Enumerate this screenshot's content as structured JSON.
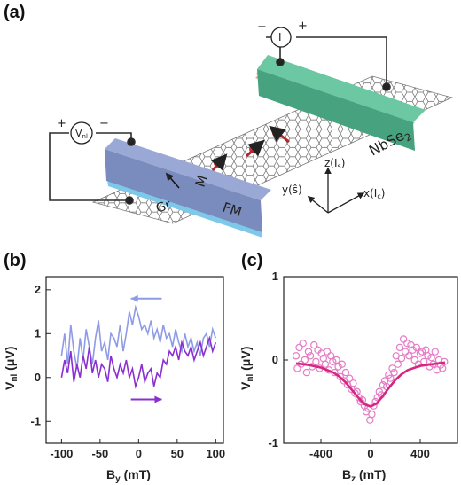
{
  "panels": {
    "a": "(a)",
    "b": "(b)",
    "c": "(c)"
  },
  "schematic": {
    "voltmeter": "V",
    "voltmeter_sub": "nl",
    "voltmeter_plus": "+",
    "voltmeter_minus": "−",
    "ammeter": "I",
    "ammeter_plus": "+",
    "ammeter_minus": "−",
    "graphene_label": "Gr",
    "ferromagnet_label": "FM",
    "magnetization_label": "M",
    "tmd_label": "NbSe",
    "tmd_sub": "2",
    "axis_z": "z(I",
    "axis_z_sub": "s",
    "axis_y": "y(ŝ)",
    "axis_x": "x(I",
    "axis_x_sub": "c",
    "colors": {
      "ferromagnet": "#8a9ccc",
      "ferromagnet_base": "#6fc6e8",
      "tmd": "#5fbf99",
      "spin": "#b5262a",
      "graphene": "#555555"
    }
  },
  "chart_data": [
    {
      "type": "line",
      "panel": "(b)",
      "xlabel": "B",
      "xlabel_sub": "y",
      "xlabel_unit": " (mT)",
      "ylabel": "V",
      "ylabel_sub": "nl",
      "ylabel_unit": " (μV)",
      "xlim": [
        -120,
        110
      ],
      "ylim": [
        -1.5,
        2.3
      ],
      "xticks": [
        -100,
        -50,
        0,
        50,
        100
      ],
      "yticks": [
        -1,
        0,
        1,
        2
      ],
      "series": [
        {
          "color": "#8e9be6",
          "sweep": "down",
          "x": [
            -100,
            -96,
            -92,
            -88,
            -84,
            -80,
            -76,
            -72,
            -68,
            -64,
            -60,
            -56,
            -52,
            -48,
            -44,
            -40,
            -36,
            -32,
            -28,
            -24,
            -20,
            -16,
            -12,
            -8,
            -4,
            0,
            4,
            8,
            12,
            16,
            20,
            24,
            28,
            32,
            36,
            40,
            44,
            48,
            52,
            56,
            60,
            64,
            68,
            72,
            76,
            80,
            84,
            88,
            92,
            96,
            100
          ],
          "y": [
            0.5,
            1.0,
            0.3,
            1.2,
            0.6,
            0.2,
            0.9,
            0.4,
            1.1,
            0.7,
            0.3,
            0.9,
            1.3,
            0.6,
            0.8,
            0.4,
            1.0,
            0.9,
            0.7,
            1.2,
            0.6,
            1.0,
            1.5,
            1.2,
            1.6,
            1.4,
            1.1,
            1.2,
            1.0,
            1.3,
            0.9,
            1.1,
            0.8,
            1.2,
            0.9,
            1.0,
            0.7,
            1.1,
            0.8,
            0.6,
            1.0,
            0.7,
            0.9,
            0.6,
            0.8,
            0.5,
            0.9,
            1.0,
            0.7,
            1.1,
            0.9
          ]
        },
        {
          "color": "#8b2fd1",
          "sweep": "up",
          "x": [
            -100,
            -96,
            -92,
            -88,
            -84,
            -80,
            -76,
            -72,
            -68,
            -64,
            -60,
            -56,
            -52,
            -48,
            -44,
            -40,
            -36,
            -32,
            -28,
            -24,
            -20,
            -16,
            -12,
            -8,
            -4,
            0,
            4,
            8,
            12,
            16,
            20,
            24,
            28,
            32,
            36,
            40,
            44,
            48,
            52,
            56,
            60,
            64,
            68,
            72,
            76,
            80,
            84,
            88,
            92,
            96,
            100
          ],
          "y": [
            0.0,
            0.4,
            0.1,
            0.6,
            -0.1,
            0.3,
            0.0,
            0.5,
            0.2,
            0.7,
            0.1,
            0.4,
            0.0,
            0.3,
            0.2,
            -0.1,
            0.5,
            0.2,
            0.0,
            0.3,
            0.1,
            0.4,
            0.0,
            0.2,
            -0.2,
            0.0,
            0.3,
            -0.1,
            0.1,
            0.2,
            -0.2,
            0.1,
            0.0,
            0.4,
            0.3,
            0.6,
            0.5,
            0.7,
            0.4,
            0.8,
            0.6,
            0.5,
            0.7,
            0.4,
            0.6,
            0.8,
            0.5,
            0.7,
            0.9,
            0.6,
            0.8
          ]
        }
      ],
      "annotations": {
        "arrow_down_sweep": {
          "x_from": 30,
          "x_to": -10,
          "y": 1.8,
          "color": "#8e9be6"
        },
        "arrow_up_sweep": {
          "x_from": -10,
          "x_to": 30,
          "y": -0.5,
          "color": "#8b2fd1"
        }
      }
    },
    {
      "type": "scatter",
      "panel": "(c)",
      "xlabel": "B",
      "xlabel_sub": "z",
      "xlabel_unit": " (mT)",
      "ylabel": "V",
      "ylabel_sub": "nl",
      "ylabel_unit": " (μV)",
      "xlim": [
        -700,
        700
      ],
      "ylim": [
        -1.0,
        1.0
      ],
      "xticks": [
        -400,
        0,
        400
      ],
      "yticks": [
        -1,
        0,
        1
      ],
      "marker_color": "#e57bc5",
      "fit_color": "#d6267f",
      "points": {
        "x": [
          -600,
          -590,
          -575,
          -560,
          -545,
          -530,
          -515,
          -500,
          -485,
          -470,
          -455,
          -440,
          -425,
          -410,
          -395,
          -380,
          -365,
          -350,
          -335,
          -320,
          -305,
          -290,
          -275,
          -260,
          -245,
          -230,
          -215,
          -200,
          -185,
          -170,
          -155,
          -140,
          -125,
          -110,
          -95,
          -80,
          -65,
          -50,
          -35,
          -20,
          -5,
          10,
          25,
          40,
          55,
          70,
          85,
          100,
          115,
          130,
          145,
          160,
          175,
          190,
          205,
          220,
          235,
          250,
          265,
          280,
          295,
          310,
          325,
          340,
          355,
          370,
          385,
          400,
          415,
          430,
          445,
          460,
          475,
          490,
          505,
          520,
          535,
          550,
          565,
          580,
          595
        ],
        "y": [
          0.05,
          -0.1,
          0.15,
          -0.05,
          0.2,
          0.0,
          -0.15,
          0.1,
          0.05,
          -0.08,
          0.18,
          -0.02,
          0.12,
          -0.1,
          0.08,
          0.02,
          -0.05,
          0.1,
          -0.12,
          0.05,
          -0.02,
          -0.15,
          0.0,
          -0.08,
          -0.2,
          -0.05,
          -0.25,
          -0.15,
          -0.3,
          -0.22,
          -0.35,
          -0.28,
          -0.4,
          -0.38,
          -0.45,
          -0.5,
          -0.48,
          -0.55,
          -0.62,
          -0.58,
          -0.72,
          -0.65,
          -0.55,
          -0.5,
          -0.45,
          -0.38,
          -0.42,
          -0.3,
          -0.25,
          -0.32,
          -0.18,
          -0.22,
          -0.1,
          -0.15,
          0.05,
          -0.05,
          0.15,
          0.02,
          0.25,
          0.1,
          0.2,
          0.05,
          0.18,
          0.12,
          0.0,
          0.15,
          -0.05,
          0.08,
          0.1,
          -0.02,
          0.12,
          0.05,
          -0.08,
          0.03,
          -0.05,
          0.1,
          -0.12,
          0.0,
          -0.06,
          -0.1,
          -0.02
        ]
      },
      "fit": {
        "x": [
          -600,
          -500,
          -400,
          -300,
          -250,
          -200,
          -150,
          -100,
          -50,
          0,
          50,
          100,
          150,
          200,
          250,
          300,
          400,
          500,
          600
        ],
        "y": [
          -0.04,
          -0.06,
          -0.09,
          -0.15,
          -0.2,
          -0.27,
          -0.36,
          -0.45,
          -0.53,
          -0.56,
          -0.52,
          -0.43,
          -0.33,
          -0.24,
          -0.17,
          -0.12,
          -0.07,
          -0.05,
          -0.03
        ]
      }
    }
  ]
}
